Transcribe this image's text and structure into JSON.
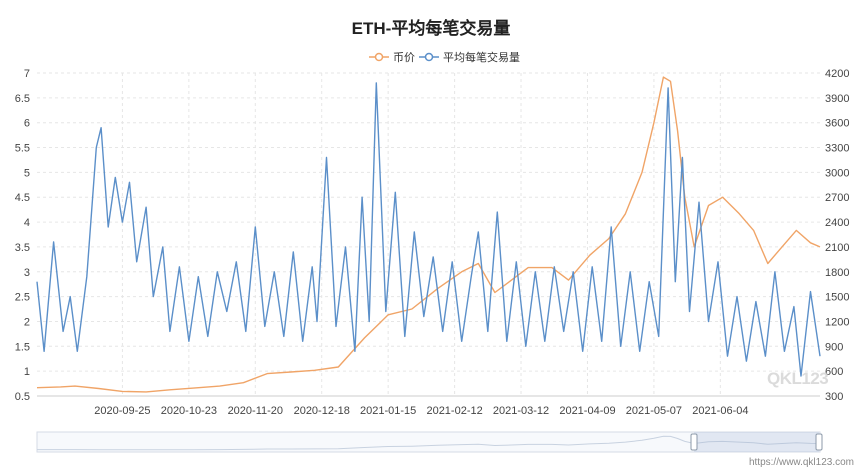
{
  "chart_data": {
    "type": "line",
    "title": "ETH-平均每笔交易量",
    "legend": {
      "placement": "top-center",
      "items": [
        "币价",
        "平均每笔交易量"
      ]
    },
    "grid": true,
    "x_axis": {
      "type": "date",
      "range": [
        "2020-08-20",
        "2021-07-16"
      ],
      "tick_labels": [
        "2020-09-25",
        "2020-10-23",
        "2020-11-20",
        "2020-12-18",
        "2021-01-15",
        "2021-02-12",
        "2021-03-12",
        "2021-04-09",
        "2021-05-07",
        "2021-06-04"
      ]
    },
    "y_left": {
      "range": [
        0.5,
        7
      ],
      "ticks": [
        "0.5",
        "1",
        "1.5",
        "2",
        "2.5",
        "3",
        "3.5",
        "4",
        "4.5",
        "5",
        "5.5",
        "6",
        "6.5",
        "7"
      ]
    },
    "y_right": {
      "range": [
        300,
        4200
      ],
      "ticks": [
        "300",
        "600",
        "900",
        "1200",
        "1500",
        "1800",
        "2100",
        "2400",
        "2700",
        "3000",
        "3300",
        "3600",
        "3900",
        "4200"
      ]
    },
    "series": [
      {
        "name": "币价",
        "axis": "right",
        "color": "#F0A467",
        "points": [
          [
            "2020-08-20",
            400
          ],
          [
            "2020-08-30",
            410
          ],
          [
            "2020-09-05",
            420
          ],
          [
            "2020-09-15",
            390
          ],
          [
            "2020-09-25",
            355
          ],
          [
            "2020-10-05",
            350
          ],
          [
            "2020-10-15",
            375
          ],
          [
            "2020-10-25",
            395
          ],
          [
            "2020-11-05",
            420
          ],
          [
            "2020-11-15",
            460
          ],
          [
            "2020-11-25",
            570
          ],
          [
            "2020-12-05",
            590
          ],
          [
            "2020-12-15",
            610
          ],
          [
            "2020-12-25",
            650
          ],
          [
            "2021-01-05",
            1000
          ],
          [
            "2021-01-15",
            1280
          ],
          [
            "2021-01-25",
            1350
          ],
          [
            "2021-02-05",
            1600
          ],
          [
            "2021-02-15",
            1800
          ],
          [
            "2021-02-22",
            1900
          ],
          [
            "2021-03-01",
            1550
          ],
          [
            "2021-03-08",
            1700
          ],
          [
            "2021-03-15",
            1850
          ],
          [
            "2021-03-25",
            1850
          ],
          [
            "2021-04-01",
            1700
          ],
          [
            "2021-04-10",
            2000
          ],
          [
            "2021-04-18",
            2200
          ],
          [
            "2021-04-25",
            2500
          ],
          [
            "2021-05-02",
            3000
          ],
          [
            "2021-05-07",
            3600
          ],
          [
            "2021-05-11",
            4150
          ],
          [
            "2021-05-14",
            4100
          ],
          [
            "2021-05-17",
            3500
          ],
          [
            "2021-05-20",
            2700
          ],
          [
            "2021-05-24",
            2100
          ],
          [
            "2021-05-30",
            2600
          ],
          [
            "2021-06-05",
            2700
          ],
          [
            "2021-06-12",
            2500
          ],
          [
            "2021-06-18",
            2300
          ],
          [
            "2021-06-24",
            1900
          ],
          [
            "2021-06-30",
            2100
          ],
          [
            "2021-07-06",
            2300
          ],
          [
            "2021-07-12",
            2150
          ],
          [
            "2021-07-16",
            2100
          ]
        ]
      },
      {
        "name": "平均每笔交易量",
        "axis": "left",
        "color": "#5B8FC9",
        "points": [
          [
            "2020-08-20",
            2.8
          ],
          [
            "2020-08-23",
            1.4
          ],
          [
            "2020-08-27",
            3.6
          ],
          [
            "2020-08-31",
            1.8
          ],
          [
            "2020-09-03",
            2.5
          ],
          [
            "2020-09-06",
            1.4
          ],
          [
            "2020-09-10",
            2.9
          ],
          [
            "2020-09-14",
            5.5
          ],
          [
            "2020-09-16",
            5.9
          ],
          [
            "2020-09-19",
            3.9
          ],
          [
            "2020-09-22",
            4.9
          ],
          [
            "2020-09-25",
            4.0
          ],
          [
            "2020-09-28",
            4.8
          ],
          [
            "2020-10-01",
            3.2
          ],
          [
            "2020-10-05",
            4.3
          ],
          [
            "2020-10-08",
            2.5
          ],
          [
            "2020-10-12",
            3.5
          ],
          [
            "2020-10-15",
            1.8
          ],
          [
            "2020-10-19",
            3.1
          ],
          [
            "2020-10-23",
            1.6
          ],
          [
            "2020-10-27",
            2.9
          ],
          [
            "2020-10-31",
            1.7
          ],
          [
            "2020-11-04",
            3.0
          ],
          [
            "2020-11-08",
            2.2
          ],
          [
            "2020-11-12",
            3.2
          ],
          [
            "2020-11-16",
            1.8
          ],
          [
            "2020-11-20",
            3.9
          ],
          [
            "2020-11-24",
            1.9
          ],
          [
            "2020-11-28",
            3.0
          ],
          [
            "2020-12-02",
            1.7
          ],
          [
            "2020-12-06",
            3.4
          ],
          [
            "2020-12-10",
            1.6
          ],
          [
            "2020-12-14",
            3.1
          ],
          [
            "2020-12-16",
            2.0
          ],
          [
            "2020-12-20",
            5.3
          ],
          [
            "2020-12-24",
            1.9
          ],
          [
            "2020-12-28",
            3.5
          ],
          [
            "2021-01-01",
            1.4
          ],
          [
            "2021-01-04",
            4.5
          ],
          [
            "2021-01-07",
            2.0
          ],
          [
            "2021-01-10",
            6.8
          ],
          [
            "2021-01-14",
            2.2
          ],
          [
            "2021-01-18",
            4.6
          ],
          [
            "2021-01-22",
            1.7
          ],
          [
            "2021-01-26",
            3.8
          ],
          [
            "2021-01-30",
            2.1
          ],
          [
            "2021-02-03",
            3.3
          ],
          [
            "2021-02-07",
            1.8
          ],
          [
            "2021-02-11",
            3.2
          ],
          [
            "2021-02-15",
            1.6
          ],
          [
            "2021-02-19",
            2.9
          ],
          [
            "2021-02-22",
            3.8
          ],
          [
            "2021-02-26",
            1.8
          ],
          [
            "2021-03-02",
            4.2
          ],
          [
            "2021-03-06",
            1.6
          ],
          [
            "2021-03-10",
            3.2
          ],
          [
            "2021-03-14",
            1.5
          ],
          [
            "2021-03-18",
            3.0
          ],
          [
            "2021-03-22",
            1.6
          ],
          [
            "2021-03-26",
            3.1
          ],
          [
            "2021-03-30",
            1.8
          ],
          [
            "2021-04-03",
            3.0
          ],
          [
            "2021-04-07",
            1.4
          ],
          [
            "2021-04-11",
            3.1
          ],
          [
            "2021-04-15",
            1.6
          ],
          [
            "2021-04-19",
            3.9
          ],
          [
            "2021-04-23",
            1.5
          ],
          [
            "2021-04-27",
            3.0
          ],
          [
            "2021-05-01",
            1.4
          ],
          [
            "2021-05-05",
            2.8
          ],
          [
            "2021-05-09",
            1.7
          ],
          [
            "2021-05-13",
            6.7
          ],
          [
            "2021-05-16",
            2.8
          ],
          [
            "2021-05-19",
            5.3
          ],
          [
            "2021-05-22",
            2.2
          ],
          [
            "2021-05-26",
            4.4
          ],
          [
            "2021-05-30",
            2.0
          ],
          [
            "2021-06-03",
            3.2
          ],
          [
            "2021-06-07",
            1.3
          ],
          [
            "2021-06-11",
            2.5
          ],
          [
            "2021-06-15",
            1.2
          ],
          [
            "2021-06-19",
            2.4
          ],
          [
            "2021-06-23",
            1.3
          ],
          [
            "2021-06-27",
            3.0
          ],
          [
            "2021-07-01",
            1.4
          ],
          [
            "2021-07-05",
            2.3
          ],
          [
            "2021-07-08",
            0.9
          ],
          [
            "2021-07-12",
            2.6
          ],
          [
            "2021-07-16",
            1.3
          ]
        ]
      }
    ]
  },
  "watermark": {
    "url": "https://www.qkl123.com",
    "logo_text": "QKL123"
  }
}
